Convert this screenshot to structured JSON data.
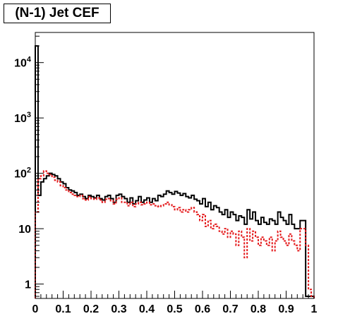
{
  "chart_data": {
    "type": "histogram",
    "title": "(N-1) Jet CEF",
    "xlabel": "",
    "ylabel": "",
    "xlim": [
      0,
      1
    ],
    "ylim": [
      0.55,
      35000
    ],
    "y_scale": "log",
    "grid": false,
    "legend": "none",
    "x_tick_labels": [
      "0",
      "0.1",
      "0.2",
      "0.3",
      "0.4",
      "0.5",
      "0.6",
      "0.7",
      "0.8",
      "0.9",
      "1"
    ],
    "y_tick_labels": [
      {
        "value": 1,
        "base": "1",
        "exp": ""
      },
      {
        "value": 10,
        "base": "10",
        "exp": ""
      },
      {
        "value": 100,
        "base": "10",
        "exp": "2"
      },
      {
        "value": 1000,
        "base": "10",
        "exp": "3"
      },
      {
        "value": 10000,
        "base": "10",
        "exp": "4"
      }
    ],
    "bin_edges": {
      "start": 0,
      "step": 0.01,
      "count": 100
    },
    "series": [
      {
        "style": "solid",
        "color": "#000000",
        "values": [
          20000,
          40,
          70,
          80,
          90,
          100,
          95,
          90,
          80,
          70,
          65,
          55,
          50,
          48,
          45,
          40,
          42,
          38,
          35,
          40,
          38,
          36,
          40,
          35,
          33,
          38,
          40,
          35,
          30,
          40,
          42,
          38,
          35,
          30,
          36,
          28,
          32,
          38,
          30,
          33,
          36,
          30,
          35,
          32,
          40,
          38,
          42,
          48,
          45,
          42,
          47,
          44,
          40,
          43,
          38,
          36,
          40,
          34,
          32,
          28,
          35,
          25,
          30,
          22,
          26,
          24,
          20,
          18,
          22,
          16,
          20,
          18,
          14,
          17,
          16,
          12,
          22,
          15,
          20,
          14,
          12,
          16,
          13,
          12,
          15,
          14,
          12,
          20,
          16,
          14,
          12,
          18,
          12,
          10,
          10,
          14,
          14,
          0.6,
          0.6,
          0.6
        ]
      },
      {
        "style": "dashed",
        "color": "#e41a1c",
        "values": [
          20,
          80,
          90,
          110,
          100,
          95,
          85,
          75,
          70,
          60,
          55,
          50,
          45,
          42,
          40,
          38,
          40,
          35,
          33,
          38,
          35,
          34,
          36,
          33,
          30,
          34,
          35,
          32,
          28,
          34,
          36,
          30,
          30,
          26,
          30,
          25,
          28,
          30,
          27,
          28,
          30,
          27,
          28,
          26,
          25,
          26,
          28,
          30,
          27,
          25,
          22,
          24,
          20,
          22,
          20,
          22,
          24,
          20,
          18,
          14,
          18,
          11,
          14,
          10,
          12,
          11,
          9,
          8,
          10,
          7,
          9,
          8,
          5,
          9,
          7,
          3,
          10,
          6,
          9,
          7,
          5,
          7,
          6,
          5,
          7,
          4,
          6,
          9,
          7,
          6,
          5,
          8,
          6,
          5,
          4,
          10,
          10,
          5,
          0.8,
          0.6
        ]
      }
    ]
  }
}
